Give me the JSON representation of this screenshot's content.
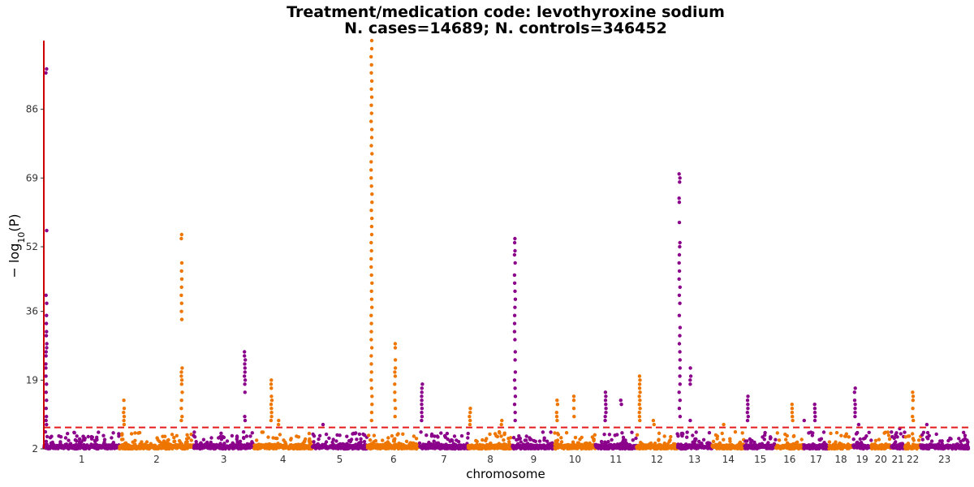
{
  "chart_data": {
    "type": "scatter",
    "subtype": "manhattan",
    "title": "Treatment/medication code: levothyroxine sodium",
    "subtitle": "N. cases=14689; N. controls=346452",
    "xlabel": "chromosome",
    "ylabel": "-log10(P)",
    "ylabel_parts": {
      "minus": "− log",
      "sub": "10",
      "rest": "(P)"
    },
    "ylim": [
      2,
      103
    ],
    "yticks": [
      2,
      19,
      36,
      52,
      69,
      86
    ],
    "significance_line": 7.3,
    "colors": {
      "odd": "#8B008B",
      "even": "#EE7600",
      "threshold": "#E41A1C",
      "axis": "#CC0000"
    },
    "chromosomes": [
      {
        "label": "1",
        "length": 248,
        "peaks": [
          {
            "pos": 0.0,
            "values": [
              96,
              95,
              56,
              40,
              38,
              35,
              33,
              31,
              30,
              28,
              27,
              26,
              25,
              23,
              22,
              20,
              18,
              16,
              14,
              12,
              10,
              9,
              8
            ]
          }
        ]
      },
      {
        "label": "2",
        "length": 242,
        "peaks": [
          {
            "pos": 0.06,
            "values": [
              14,
              12,
              11,
              10,
              9,
              8
            ]
          },
          {
            "pos": 0.84,
            "values": [
              55,
              54,
              48,
              46,
              44,
              42,
              40,
              38,
              36,
              34,
              22,
              21,
              20,
              19,
              18,
              16,
              14,
              12,
              10,
              9
            ]
          }
        ]
      },
      {
        "label": "3",
        "length": 198,
        "peaks": [
          {
            "pos": 0.85,
            "values": [
              26,
              25,
              24,
              23,
              22,
              21,
              20,
              19,
              18,
              16,
              10,
              9
            ]
          }
        ]
      },
      {
        "label": "4",
        "length": 190,
        "peaks": [
          {
            "pos": 0.3,
            "values": [
              19,
              18,
              17,
              15,
              14,
              13,
              12,
              11,
              10,
              9
            ]
          },
          {
            "pos": 0.42,
            "values": [
              9,
              8
            ]
          }
        ]
      },
      {
        "label": "5",
        "length": 181,
        "peaks": [
          {
            "pos": 0.2,
            "values": [
              8
            ]
          }
        ]
      },
      {
        "label": "6",
        "length": 171,
        "peaks": [
          {
            "pos": 0.08,
            "values": [
              103,
              101,
              99,
              97,
              95,
              93,
              91,
              89,
              87,
              85,
              83,
              81,
              79,
              77,
              75,
              73,
              71,
              69,
              67,
              65,
              63,
              61,
              59,
              57,
              55,
              53,
              51,
              49,
              47,
              45,
              43,
              41,
              39,
              37,
              35,
              33,
              31,
              29,
              27,
              25,
              23,
              21,
              19,
              17,
              15,
              13,
              11,
              9
            ]
          },
          {
            "pos": 0.53,
            "values": [
              28,
              27,
              24,
              22,
              21,
              20,
              18,
              16,
              14,
              12,
              10
            ]
          }
        ]
      },
      {
        "label": "7",
        "length": 159,
        "peaks": [
          {
            "pos": 0.0,
            "values": [
              18,
              17,
              16,
              15,
              14,
              13,
              12,
              11,
              10,
              9
            ]
          }
        ]
      },
      {
        "label": "8",
        "length": 145,
        "peaks": [
          {
            "pos": 0.04,
            "values": [
              12,
              11,
              10,
              9,
              8
            ]
          },
          {
            "pos": 0.76,
            "values": [
              9,
              8
            ]
          }
        ]
      },
      {
        "label": "9",
        "length": 138,
        "peaks": [
          {
            "pos": 0.0,
            "values": [
              54,
              53,
              51,
              50,
              48,
              45,
              43,
              41,
              39,
              37,
              35,
              33,
              31,
              29,
              26,
              24,
              21,
              19,
              17,
              15,
              13,
              11,
              9
            ]
          }
        ]
      },
      {
        "label": "10",
        "length": 133,
        "peaks": [
          {
            "pos": 0.06,
            "values": [
              14,
              13,
              11,
              10,
              9
            ]
          },
          {
            "pos": 0.47,
            "values": [
              15,
              14,
              12,
              10
            ]
          }
        ]
      },
      {
        "label": "11",
        "length": 135,
        "peaks": [
          {
            "pos": 0.25,
            "values": [
              16,
              15,
              14,
              13,
              12,
              11,
              10,
              9
            ]
          },
          {
            "pos": 0.63,
            "values": [
              14,
              13
            ]
          }
        ]
      },
      {
        "label": "12",
        "length": 133,
        "peaks": [
          {
            "pos": 0.08,
            "values": [
              20,
              19,
              18,
              17,
              16,
              15,
              14,
              13,
              12,
              11,
              10,
              9
            ]
          },
          {
            "pos": 0.42,
            "values": [
              9,
              8
            ]
          }
        ]
      },
      {
        "label": "13",
        "length": 114,
        "peaks": [
          {
            "pos": 0.0,
            "values": [
              70,
              69,
              68,
              64,
              63,
              58,
              53,
              52,
              50,
              48,
              46,
              44,
              42,
              40,
              38,
              35,
              32,
              30,
              28,
              26,
              24,
              22,
              20,
              18,
              16,
              14,
              12,
              10
            ]
          },
          {
            "pos": 0.38,
            "values": [
              22,
              20,
              19,
              18,
              9
            ]
          }
        ]
      },
      {
        "label": "14",
        "length": 107,
        "peaks": [
          {
            "pos": 0.35,
            "values": [
              8
            ]
          }
        ]
      },
      {
        "label": "15",
        "length": 102,
        "peaks": [
          {
            "pos": 0.1,
            "values": [
              15,
              14,
              13,
              12,
              11,
              10,
              9
            ]
          }
        ]
      },
      {
        "label": "16",
        "length": 90,
        "peaks": [
          {
            "pos": 0.6,
            "values": [
              13,
              12,
              11,
              10,
              9
            ]
          }
        ]
      },
      {
        "label": "17",
        "length": 83,
        "peaks": [
          {
            "pos": 0.05,
            "values": [
              9
            ]
          },
          {
            "pos": 0.45,
            "values": [
              13,
              12,
              11,
              10,
              9
            ]
          }
        ]
      },
      {
        "label": "18",
        "length": 80,
        "peaks": []
      },
      {
        "label": "19",
        "length": 59,
        "peaks": [
          {
            "pos": 0.1,
            "values": [
              17,
              16,
              14,
              13,
              12,
              11,
              10
            ]
          },
          {
            "pos": 0.3,
            "values": [
              8
            ]
          }
        ]
      },
      {
        "label": "20",
        "length": 64,
        "peaks": []
      },
      {
        "label": "21",
        "length": 47,
        "peaks": [
          {
            "pos": 0.6,
            "values": [
              7
            ]
          }
        ]
      },
      {
        "label": "22",
        "length": 51,
        "peaks": [
          {
            "pos": 0.5,
            "values": [
              16,
              15,
              14,
              12,
              10,
              9
            ]
          }
        ]
      },
      {
        "label": "23",
        "length": 156,
        "peaks": [
          {
            "pos": 0.12,
            "values": [
              8
            ]
          }
        ]
      }
    ]
  }
}
